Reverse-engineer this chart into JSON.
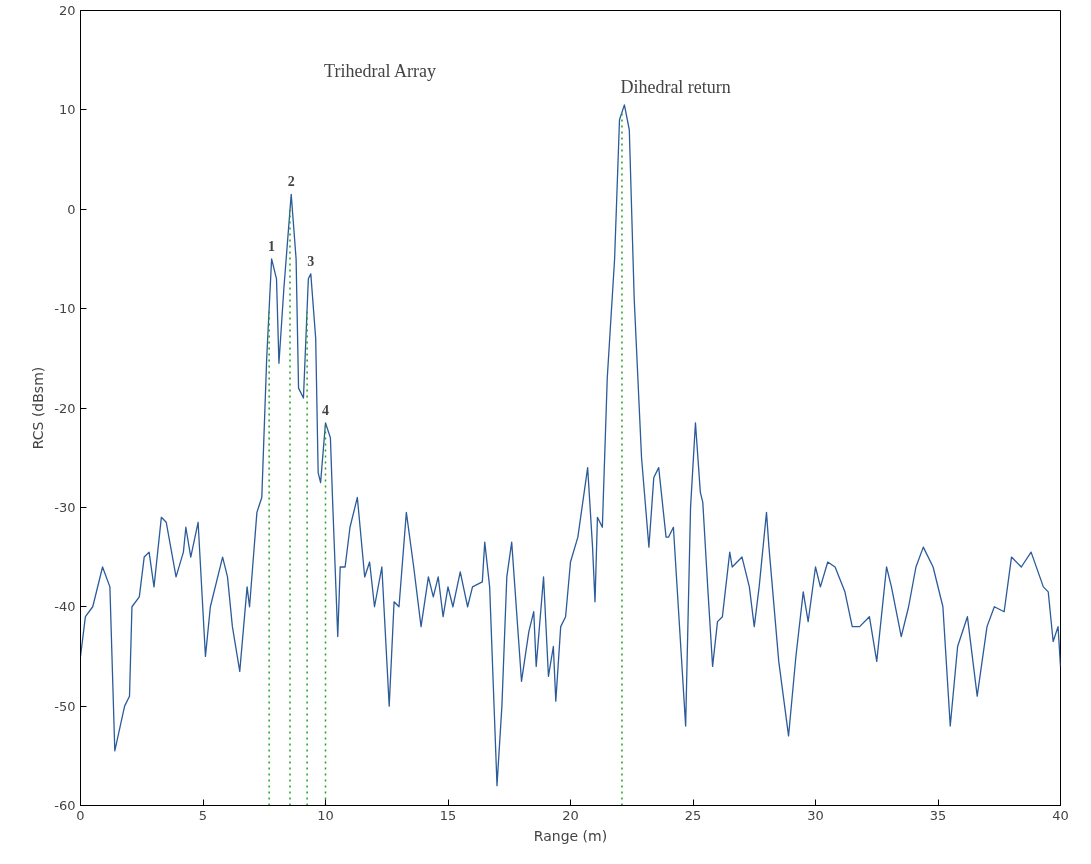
{
  "chart_data": {
    "type": "line",
    "xlabel": "Range (m)",
    "ylabel": "RCS (dBsm)",
    "xlim": [
      0,
      40
    ],
    "ylim": [
      -60,
      20
    ],
    "xticks": [
      0,
      5,
      10,
      15,
      20,
      25,
      30,
      35,
      40
    ],
    "yticks": [
      -60,
      -50,
      -40,
      -30,
      -20,
      -10,
      0,
      10,
      20
    ],
    "grid": false,
    "line_style": "solid",
    "series": [
      {
        "color": "#2b5b9a",
        "x": [
          0,
          0.2,
          0.5,
          0.9,
          1.2,
          1.4,
          1.8,
          2.0,
          2.1,
          2.4,
          2.6,
          2.8,
          3.0,
          3.3,
          3.5,
          3.9,
          4.2,
          4.3,
          4.5,
          4.8,
          5.1,
          5.3,
          5.8,
          6.0,
          6.2,
          6.5,
          6.8,
          6.9,
          7.2,
          7.4,
          7.6,
          7.8,
          8.0,
          8.1,
          8.3,
          8.6,
          8.8,
          8.9,
          9.1,
          9.3,
          9.4,
          9.6,
          9.7,
          9.8,
          10.0,
          10.2,
          10.3,
          10.5,
          10.6,
          10.8,
          11.0,
          11.3,
          11.6,
          11.8,
          12.0,
          12.3,
          12.6,
          12.8,
          13.0,
          13.3,
          13.6,
          13.9,
          14.2,
          14.4,
          14.6,
          14.8,
          15.0,
          15.2,
          15.5,
          15.8,
          16.0,
          16.4,
          16.5,
          16.7,
          17.0,
          17.2,
          17.4,
          17.6,
          18.0,
          18.3,
          18.5,
          18.6,
          18.9,
          19.1,
          19.3,
          19.4,
          19.6,
          19.8,
          20.0,
          20.3,
          20.7,
          20.9,
          21.0,
          21.1,
          21.3,
          21.5,
          21.8,
          22.0,
          22.2,
          22.4,
          22.6,
          22.9,
          23.2,
          23.4,
          23.6,
          23.9,
          24.0,
          24.2,
          24.5,
          24.7,
          24.9,
          25.1,
          25.3,
          25.4,
          25.6,
          25.8,
          26.0,
          26.2,
          26.5,
          26.6,
          27.0,
          27.3,
          27.5,
          27.7,
          28.0,
          28.1,
          28.5,
          28.9,
          29.2,
          29.5,
          29.7,
          30.0,
          30.2,
          30.5,
          30.8,
          31.2,
          31.5,
          31.8,
          32.2,
          32.5,
          32.9,
          33.1,
          33.5,
          33.8,
          34.1,
          34.4,
          34.8,
          35.2,
          35.5,
          35.8,
          36.2,
          36.6,
          37.0,
          37.3,
          37.7,
          38.0,
          38.4,
          38.8,
          39.3,
          39.5,
          39.7,
          39.9,
          40.0
        ],
        "values": [
          -45,
          -41,
          -40,
          -36,
          -38,
          -54.5,
          -50,
          -49,
          -40,
          -39,
          -35,
          -34.5,
          -38,
          -31,
          -31.5,
          -37,
          -34.5,
          -32,
          -35,
          -31.5,
          -45,
          -40,
          -35,
          -37,
          -42,
          -46.5,
          -38,
          -40,
          -30.5,
          -29,
          -15,
          -5,
          -7,
          -15.5,
          -8,
          1.5,
          -5,
          -18,
          -19,
          -7,
          -6.5,
          -13,
          -26.5,
          -27.5,
          -21.5,
          -23,
          -30,
          -43,
          -36,
          -36,
          -32,
          -29,
          -37,
          -35.5,
          -40,
          -36,
          -50,
          -39.5,
          -40,
          -30.5,
          -36,
          -42,
          -37,
          -39,
          -37,
          -41,
          -38,
          -40,
          -36.5,
          -40,
          -38,
          -37.5,
          -33.5,
          -38,
          -58,
          -50,
          -37,
          -33.5,
          -47.5,
          -42.5,
          -40.5,
          -46,
          -37,
          -47,
          -44,
          -49.5,
          -42,
          -41,
          -35.5,
          -33,
          -26,
          -34,
          -39.5,
          -31,
          -32,
          -17,
          -5,
          9,
          10.5,
          8,
          -9,
          -25,
          -34,
          -27,
          -26,
          -33,
          -33,
          -32,
          -44,
          -52,
          -30,
          -21.5,
          -28.5,
          -29.5,
          -38,
          -46,
          -41.5,
          -41,
          -34.5,
          -36,
          -35,
          -38,
          -42,
          -38,
          -30.5,
          -34,
          -45.5,
          -53,
          -45,
          -38.5,
          -41.5,
          -36,
          -38,
          -35.5,
          -36,
          -38.5,
          -42,
          -42,
          -41,
          -45.5,
          -36,
          -38,
          -43,
          -40,
          -36,
          -34,
          -36,
          -40,
          -52,
          -44,
          -41,
          -49,
          -42,
          -40,
          -40.5,
          -35,
          -36,
          -34.5,
          -38,
          -38.5,
          -43.5,
          -42,
          -46
        ]
      }
    ],
    "ref_lines": [
      {
        "axis": "x",
        "value": 7.7,
        "color": "#22a022",
        "line_style": "dotted"
      },
      {
        "axis": "x",
        "value": 8.55,
        "color": "#22a022",
        "line_style": "dotted"
      },
      {
        "axis": "x",
        "value": 9.25,
        "color": "#22a022",
        "line_style": "dotted"
      },
      {
        "axis": "x",
        "value": 10.0,
        "color": "#22a022",
        "line_style": "dotted"
      },
      {
        "axis": "x",
        "value": 22.1,
        "color": "#22a022",
        "line_style": "dotted"
      }
    ],
    "annotations": [
      "Trihedral Array",
      {
        "text": "1",
        "x": 7.8,
        "y": -5
      },
      {
        "text": "2",
        "x": 8.6,
        "y": 1.5
      },
      {
        "text": "3",
        "x": 9.4,
        "y": -6.5
      },
      {
        "text": "4",
        "x": 10.0,
        "y": -21.5
      },
      {
        "text": "Dihedral return",
        "x": 22.2,
        "y": 10.5
      }
    ]
  }
}
